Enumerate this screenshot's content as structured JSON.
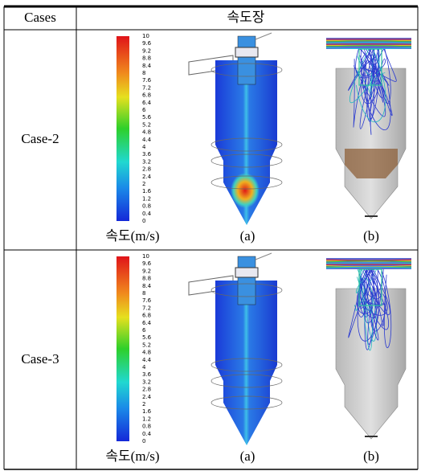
{
  "header": {
    "cases": "Cases",
    "field": "속도장"
  },
  "rows": [
    {
      "case": "Case-2",
      "colorbar_ticks": [
        10,
        9.6,
        9.2,
        8.8,
        8.4,
        8,
        7.6,
        7.2,
        6.8,
        6.4,
        6,
        5.6,
        5.2,
        4.8,
        4.4,
        4,
        3.6,
        3.2,
        2.8,
        2.4,
        2,
        1.6,
        1.2,
        0.8,
        0.4,
        0
      ],
      "colorbar_label": "속도(m/s)",
      "image_a_label": "(a)",
      "image_b_label": "(b)"
    },
    {
      "case": "Case-3",
      "colorbar_ticks": [
        10,
        9.6,
        9.2,
        8.8,
        8.4,
        8,
        7.6,
        7.2,
        6.8,
        6.4,
        6,
        5.6,
        5.2,
        4.8,
        4.4,
        4,
        3.6,
        3.2,
        2.8,
        2.4,
        2,
        1.6,
        1.2,
        0.8,
        0.4,
        0
      ],
      "colorbar_label": "속도(m/s)",
      "image_a_label": "(a)",
      "image_b_label": "(b)"
    }
  ]
}
